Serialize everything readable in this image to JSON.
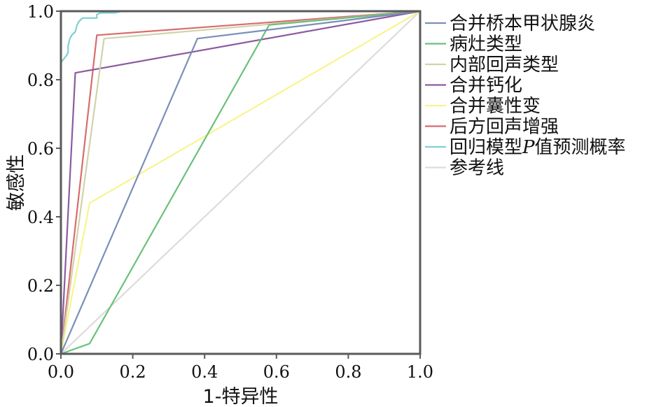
{
  "chart_data": {
    "type": "line",
    "title": "",
    "xlabel": "1-特异性",
    "ylabel": "敏感性",
    "xlim": [
      0,
      1
    ],
    "ylim": [
      0,
      1
    ],
    "xticks": [
      "0.0",
      "0.2",
      "0.4",
      "0.6",
      "0.8",
      "1.0"
    ],
    "yticks": [
      "0.0",
      "0.2",
      "0.4",
      "0.6",
      "0.8",
      "1.0"
    ],
    "grid": false,
    "legend_position": "right",
    "series": [
      {
        "name": "合并桥本甲状腺炎",
        "color": "#7a8fb8",
        "points": [
          [
            0,
            0
          ],
          [
            0.38,
            0.92
          ],
          [
            1,
            1
          ]
        ]
      },
      {
        "name": "病灶类型",
        "color": "#6cc07a",
        "points": [
          [
            0,
            0
          ],
          [
            0.08,
            0.03
          ],
          [
            0.58,
            0.96
          ],
          [
            1,
            1
          ]
        ]
      },
      {
        "name": "内部回声类型",
        "color": "#d2d2aa",
        "points": [
          [
            0,
            0
          ],
          [
            0.12,
            0.92
          ],
          [
            1,
            1
          ]
        ]
      },
      {
        "name": "合并钙化",
        "color": "#8c5aa0",
        "points": [
          [
            0,
            0
          ],
          [
            0.04,
            0.82
          ],
          [
            1,
            1
          ]
        ]
      },
      {
        "name": "合并囊性变",
        "color": "#f8f48e",
        "points": [
          [
            0,
            0
          ],
          [
            0.08,
            0.44
          ],
          [
            1,
            1
          ]
        ]
      },
      {
        "name": "后方回声增强",
        "color": "#d86c6c",
        "points": [
          [
            0,
            0
          ],
          [
            0.1,
            0.93
          ],
          [
            1,
            1
          ]
        ]
      },
      {
        "name_parts": [
          "回归模型",
          "P",
          "值预测概率"
        ],
        "color": "#7fcfd4",
        "points": [
          [
            0,
            0.85
          ],
          [
            0.015,
            0.87
          ],
          [
            0.02,
            0.88
          ],
          [
            0.02,
            0.9
          ],
          [
            0.025,
            0.92
          ],
          [
            0.03,
            0.93
          ],
          [
            0.04,
            0.94
          ],
          [
            0.045,
            0.96
          ],
          [
            0.05,
            0.97
          ],
          [
            0.06,
            0.98
          ],
          [
            0.08,
            0.98
          ],
          [
            0.1,
            0.98
          ],
          [
            0.1,
            0.99
          ],
          [
            0.11,
            0.995
          ],
          [
            0.15,
            0.995
          ],
          [
            0.17,
            1.0
          ],
          [
            1,
            1
          ]
        ]
      },
      {
        "name": "参考线",
        "color": "#dcdcdc",
        "points": [
          [
            0,
            0
          ],
          [
            1,
            1
          ]
        ]
      }
    ]
  }
}
